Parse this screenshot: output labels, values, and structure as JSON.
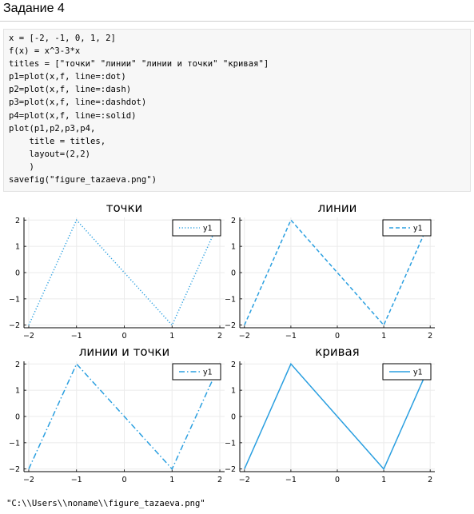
{
  "heading": "Задание 4",
  "code_lines": [
    "x = [-2, -1, 0, 1, 2]",
    "f(x) = x^3-3*x",
    "titles = [\"точки\" \"линии\" \"линии и точки\" \"кривая\"]",
    "p1=plot(x,f, line=:dot)",
    "p2=plot(x,f, line=:dash)",
    "p3=plot(x,f, line=:dashdot)",
    "p4=plot(x,f, line=:solid)",
    "plot(p1,p2,p3,p4,",
    "    title = titles,",
    "    layout=(2,2)",
    "    )",
    "savefig(\"figure_tazaeva.png\")"
  ],
  "output_text": "\"C:\\\\Users\\\\noname\\\\figure_tazaeva.png\"",
  "colors": {
    "line": "#2a9fe0",
    "grid": "#ebebeb",
    "axis": "#000000",
    "code_bg": "#f7f7f7"
  },
  "chart_data": [
    {
      "type": "line",
      "title": "точки",
      "line_style": "dot",
      "x": [
        -2,
        -1,
        0,
        1,
        2
      ],
      "y": [
        -2,
        2,
        0,
        -2,
        2
      ],
      "xlim": [
        -2.1,
        2.1
      ],
      "ylim": [
        -2.1,
        2.1
      ],
      "xticks": [
        "−2",
        "−1",
        "0",
        "1",
        "2"
      ],
      "yticks": [
        "2",
        "1",
        "0",
        "−1",
        "−2"
      ],
      "legend": "y1",
      "legend_position": "top-right",
      "grid": true
    },
    {
      "type": "line",
      "title": "линии",
      "line_style": "dash",
      "x": [
        -2,
        -1,
        0,
        1,
        2
      ],
      "y": [
        -2,
        2,
        0,
        -2,
        2
      ],
      "xlim": [
        -2.1,
        2.1
      ],
      "ylim": [
        -2.1,
        2.1
      ],
      "xticks": [
        "−2",
        "−1",
        "0",
        "1",
        "2"
      ],
      "yticks": [
        "2",
        "1",
        "0",
        "−1",
        "−2"
      ],
      "legend": "y1",
      "legend_position": "top-right",
      "grid": true
    },
    {
      "type": "line",
      "title": "линии и точки",
      "line_style": "dashdot",
      "x": [
        -2,
        -1,
        0,
        1,
        2
      ],
      "y": [
        -2,
        2,
        0,
        -2,
        2
      ],
      "xlim": [
        -2.1,
        2.1
      ],
      "ylim": [
        -2.1,
        2.1
      ],
      "xticks": [
        "−2",
        "−1",
        "0",
        "1",
        "2"
      ],
      "yticks": [
        "2",
        "1",
        "0",
        "−1",
        "−2"
      ],
      "legend": "y1",
      "legend_position": "top-right",
      "grid": true
    },
    {
      "type": "line",
      "title": "кривая",
      "line_style": "solid",
      "x": [
        -2,
        -1,
        0,
        1,
        2
      ],
      "y": [
        -2,
        2,
        0,
        -2,
        2
      ],
      "xlim": [
        -2.1,
        2.1
      ],
      "ylim": [
        -2.1,
        2.1
      ],
      "xticks": [
        "−2",
        "−1",
        "0",
        "1",
        "2"
      ],
      "yticks": [
        "2",
        "1",
        "0",
        "−1",
        "−2"
      ],
      "legend": "y1",
      "legend_position": "top-right",
      "grid": true
    }
  ]
}
